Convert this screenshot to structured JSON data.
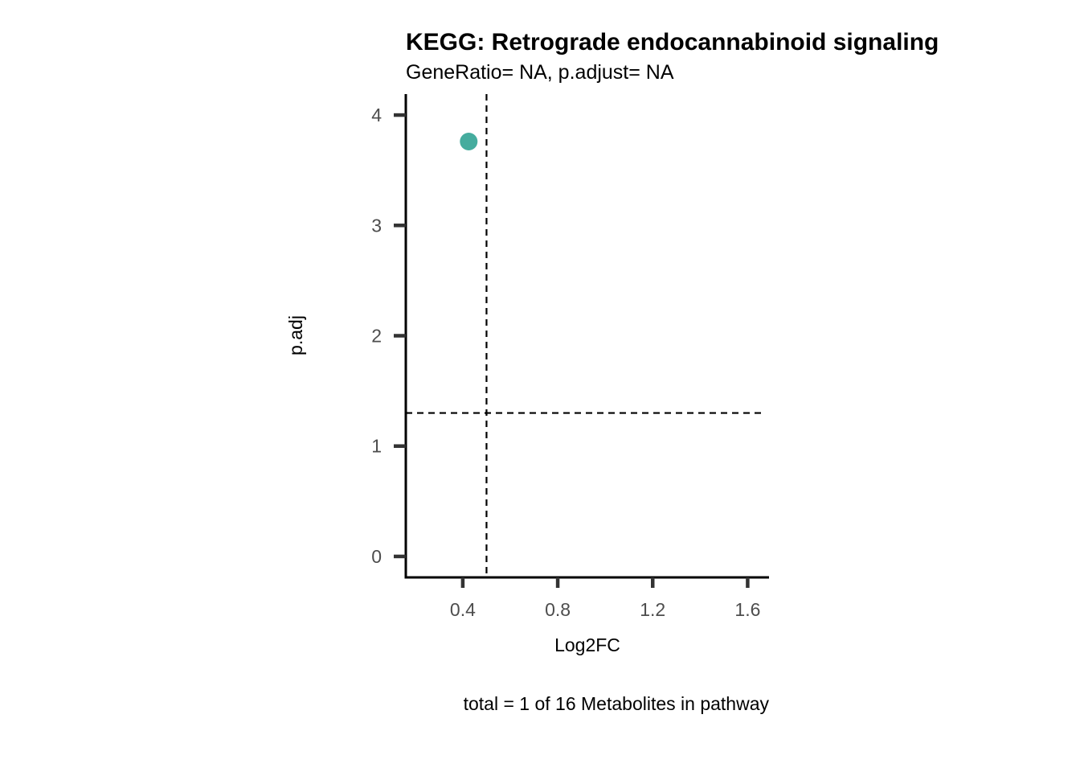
{
  "chart_data": {
    "type": "scatter",
    "title": "KEGG: Retrograde endocannabinoid signaling",
    "subtitle": "GeneRatio= NA, p.adjust= NA",
    "xlabel": "Log2FC",
    "ylabel": "p.adj",
    "caption": "total = 1 of 16 Metabolites in pathway",
    "xlim": [
      0.16,
      1.69
    ],
    "ylim": [
      -0.19,
      4.19
    ],
    "x_ticks": [
      0.4,
      0.8,
      1.2,
      1.6
    ],
    "x_tick_labels": [
      "0.4",
      "0.8",
      "1.2",
      "1.6"
    ],
    "y_ticks": [
      0,
      1,
      2,
      3,
      4
    ],
    "y_tick_labels": [
      "0",
      "1",
      "2",
      "3",
      "4"
    ],
    "points": [
      {
        "x": 0.425,
        "y": 3.76
      }
    ],
    "point_color": "#45ac9e",
    "reference_lines": {
      "vertical_x": 0.5,
      "horizontal_y": 1.3
    },
    "grid": false,
    "legend": "none"
  }
}
